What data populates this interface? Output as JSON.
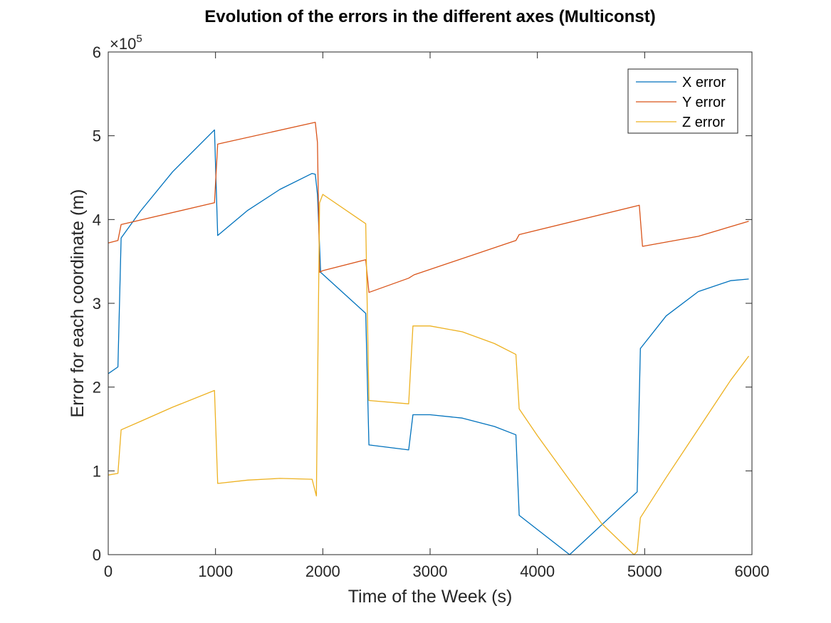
{
  "chart_data": {
    "type": "line",
    "title": "Evolution of the errors in the different axes (Multiconst)",
    "xlabel": "Time of the Week (s)",
    "ylabel": "Error for each coordinate (m)",
    "xlim": [
      0,
      6000
    ],
    "ylim": [
      0,
      600000
    ],
    "xticks": [
      0,
      1000,
      2000,
      3000,
      4000,
      5000,
      6000
    ],
    "yticks": [
      0,
      100000,
      200000,
      300000,
      400000,
      500000,
      600000
    ],
    "ytick_labels": [
      "0",
      "1",
      "2",
      "3",
      "4",
      "5",
      "6"
    ],
    "y_exponent_prefix": "×10",
    "y_exponent_power": "5",
    "grid": false,
    "legend_position": "top-right",
    "series": [
      {
        "name": "X error",
        "color": "#0072BD",
        "points": [
          [
            0,
            216000
          ],
          [
            90,
            224000
          ],
          [
            120,
            378000
          ],
          [
            300,
            410000
          ],
          [
            600,
            457000
          ],
          [
            990,
            507000
          ],
          [
            1020,
            381000
          ],
          [
            1300,
            411000
          ],
          [
            1600,
            436000
          ],
          [
            1900,
            455000
          ],
          [
            1930,
            454000
          ],
          [
            1950,
            430000
          ],
          [
            1980,
            337000
          ],
          [
            2400,
            288000
          ],
          [
            2430,
            131000
          ],
          [
            2800,
            125000
          ],
          [
            2840,
            167000
          ],
          [
            3000,
            167000
          ],
          [
            3300,
            163000
          ],
          [
            3600,
            153000
          ],
          [
            3800,
            143000
          ],
          [
            3830,
            47000
          ],
          [
            4000,
            30000
          ],
          [
            4300,
            0
          ],
          [
            4930,
            75000
          ],
          [
            4960,
            246000
          ],
          [
            5200,
            285000
          ],
          [
            5500,
            314000
          ],
          [
            5800,
            327000
          ],
          [
            5970,
            329000
          ]
        ]
      },
      {
        "name": "Y error",
        "color": "#D95319",
        "points": [
          [
            0,
            372000
          ],
          [
            90,
            375000
          ],
          [
            120,
            394000
          ],
          [
            990,
            420000
          ],
          [
            1020,
            490000
          ],
          [
            1930,
            516000
          ],
          [
            1950,
            492000
          ],
          [
            1970,
            337000
          ],
          [
            2000,
            339000
          ],
          [
            2400,
            352000
          ],
          [
            2430,
            313000
          ],
          [
            2800,
            330000
          ],
          [
            2850,
            334000
          ],
          [
            3800,
            375000
          ],
          [
            3830,
            382000
          ],
          [
            4950,
            417000
          ],
          [
            4980,
            368000
          ],
          [
            5500,
            380000
          ],
          [
            5970,
            398000
          ]
        ]
      },
      {
        "name": "Z error",
        "color": "#EDB120",
        "points": [
          [
            0,
            95000
          ],
          [
            90,
            97000
          ],
          [
            120,
            149000
          ],
          [
            300,
            159000
          ],
          [
            600,
            176000
          ],
          [
            990,
            196000
          ],
          [
            1020,
            85000
          ],
          [
            1300,
            89000
          ],
          [
            1600,
            91000
          ],
          [
            1900,
            90000
          ],
          [
            1940,
            70000
          ],
          [
            1970,
            420000
          ],
          [
            2000,
            430000
          ],
          [
            2400,
            395000
          ],
          [
            2430,
            184000
          ],
          [
            2800,
            180000
          ],
          [
            2840,
            273000
          ],
          [
            3000,
            273000
          ],
          [
            3300,
            266000
          ],
          [
            3600,
            252000
          ],
          [
            3800,
            239000
          ],
          [
            3830,
            174000
          ],
          [
            4000,
            142000
          ],
          [
            4300,
            89000
          ],
          [
            4600,
            37000
          ],
          [
            4900,
            0
          ],
          [
            4930,
            4000
          ],
          [
            4960,
            44000
          ],
          [
            5200,
            92000
          ],
          [
            5500,
            150000
          ],
          [
            5800,
            208000
          ],
          [
            5970,
            237000
          ]
        ]
      }
    ]
  }
}
